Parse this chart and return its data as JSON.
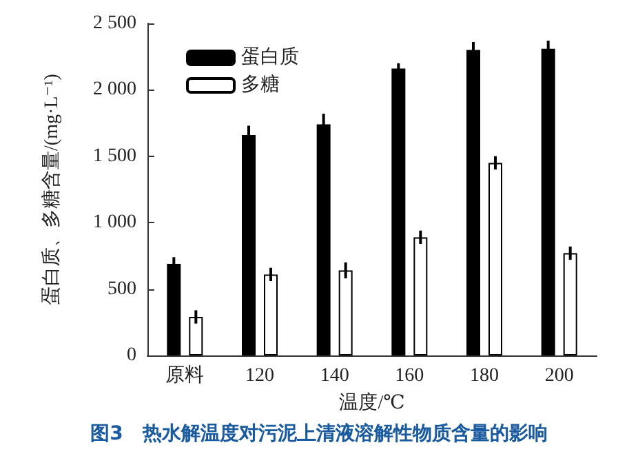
{
  "chart_data": {
    "type": "bar",
    "title": "图3　热水解温度对污泥上清液溶解性物质含量的影响",
    "xlabel": "温度/℃",
    "ylabel": "蛋白质、多糖含量/(mg·L⁻¹)",
    "categories": [
      "原料",
      "120",
      "140",
      "160",
      "180",
      "200"
    ],
    "series": [
      {
        "name": "蛋白质",
        "color": "#000000",
        "values": [
          690,
          1660,
          1740,
          2160,
          2300,
          2310
        ],
        "errors": [
          50,
          70,
          80,
          40,
          60,
          60
        ]
      },
      {
        "name": "多糖",
        "color": "#ffffff",
        "values": [
          290,
          610,
          640,
          890,
          1450,
          770
        ],
        "errors": [
          50,
          50,
          60,
          50,
          50,
          50
        ]
      }
    ],
    "ylim": [
      0,
      2500
    ],
    "yticks": [
      0,
      {
        "value": 500,
        "label": "500"
      },
      {
        "value": 1000,
        "label": "1 000"
      },
      {
        "value": 1500,
        "label": "1 500"
      },
      {
        "value": 2000,
        "label": "2 000"
      },
      {
        "value": 2500,
        "label": "2 500"
      }
    ],
    "grid": false,
    "legend": "top left"
  }
}
